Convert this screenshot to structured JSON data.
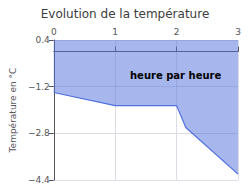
{
  "chart_data": {
    "type": "area",
    "title": "Evolution de la température",
    "annotation": "heure par heure",
    "ylabel": "Température en °C",
    "x": [
      0,
      1,
      2,
      2.15,
      3
    ],
    "values": [
      -1.4,
      -1.85,
      -1.85,
      -2.6,
      -4.2
    ],
    "baseline": 0.4,
    "xlim": [
      0,
      3
    ],
    "xticks": [
      0,
      1,
      2,
      3
    ],
    "ylim": [
      -4.4,
      0.4
    ],
    "yticks": [
      0.4,
      {
        "value": -1.2,
        "label": "−1.2"
      },
      {
        "value": -2.8,
        "label": "−2.8"
      },
      {
        "value": -4.4,
        "label": "−4.4"
      }
    ],
    "grid": true
  }
}
